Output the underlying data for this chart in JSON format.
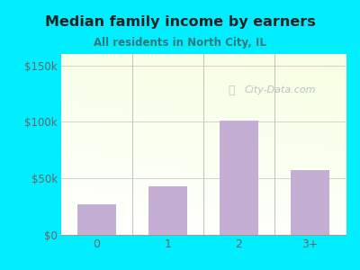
{
  "categories": [
    "0",
    "1",
    "2",
    "3+"
  ],
  "values": [
    27000,
    43000,
    101000,
    57000
  ],
  "bar_color": "#c4aed4",
  "title": "Median family income by earners",
  "subtitle": "All residents in North City, IL",
  "yticks": [
    0,
    50000,
    100000,
    150000
  ],
  "ytick_labels": [
    "$0",
    "$50k",
    "$100k",
    "$150k"
  ],
  "ylim": [
    0,
    160000
  ],
  "outer_bg": "#00eeff",
  "title_color": "#222222",
  "subtitle_color": "#337777",
  "tick_color": "#666666",
  "watermark_text": "City-Data.com",
  "watermark_color": "#b0b8c0",
  "grid_color": "#cccccc"
}
